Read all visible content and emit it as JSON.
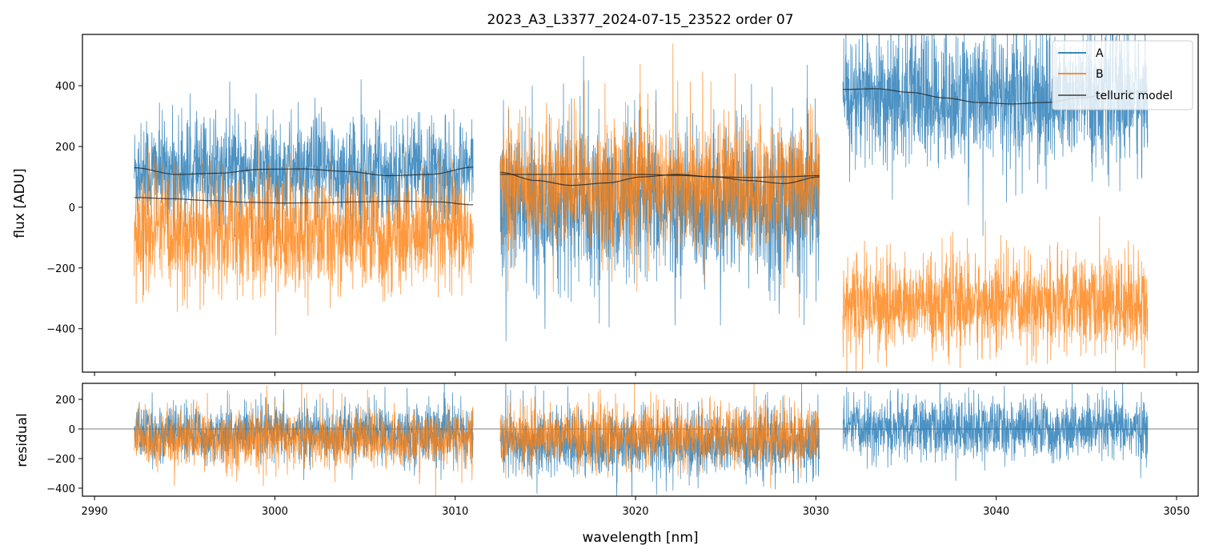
{
  "chart_data": {
    "type": "line",
    "title": "2023_A3_L3377_2024-07-15_23522  order 07",
    "xlabel": "wavelength [nm]",
    "xlim": [
      2989.33,
      3051.2
    ],
    "xticks": [
      "2990",
      "3000",
      "3010",
      "3020",
      "3030",
      "3040",
      "3050"
    ],
    "xtick_values": [
      2990,
      3000,
      3010,
      3020,
      3030,
      3040,
      3050
    ],
    "legend": {
      "placement": "top-right",
      "entries": [
        "A",
        "B",
        "telluric model"
      ]
    },
    "colors": {
      "A": "#1f77b4",
      "B": "#ff7f0e",
      "model": "#333333"
    },
    "panels": [
      {
        "name": "flux",
        "ylabel": "flux [ADU]",
        "ylim": [
          -543,
          569
        ],
        "yticks": [
          "400",
          "200",
          "0",
          "−200",
          "−400"
        ],
        "ytick_values": [
          400,
          200,
          0,
          -200,
          -400
        ],
        "segments": [
          {
            "x": [
              2992.2,
              3011.0
            ],
            "A": {
              "mean": 120,
              "noise": 85
            },
            "B": {
              "mean": -90,
              "noise": 95
            },
            "model_A": [
              130,
              108,
              112,
              125,
              126,
              118,
              104,
              108,
              132
            ],
            "model_B": [
              32,
              28,
              22,
              16,
              14,
              15,
              18,
              20,
              18,
              8
            ]
          },
          {
            "x": [
              3012.5,
              3030.2
            ],
            "A": {
              "mean": 10,
              "noise": 120
            },
            "B": {
              "mean": 70,
              "noise": 105
            },
            "model_A": [
              108,
              108,
              109,
              110,
              108,
              105,
              100,
              98,
              100,
              104
            ],
            "model_B": [
              115,
              88,
              72,
              80,
              100,
              108,
              100,
              88,
              78,
              100
            ]
          },
          {
            "x": [
              3031.5,
              3048.4
            ],
            "A": {
              "mean": 360,
              "noise": 110
            },
            "B": {
              "mean": -320,
              "noise": 75
            },
            "model_A": [
              388,
              390,
              378,
              360,
              345,
              340,
              345,
              360,
              375,
              382
            ]
          }
        ]
      },
      {
        "name": "residual",
        "ylabel": "residual",
        "ylim": [
          -454,
          308
        ],
        "yticks": [
          "200",
          "0",
          "−200",
          "−400"
        ],
        "ytick_values": [
          200,
          0,
          -200,
          -400
        ],
        "zero_line": 0,
        "segments": [
          {
            "x": [
              2992.2,
              3011.0
            ],
            "A": {
              "mean": -30,
              "noise": 95
            },
            "B": {
              "mean": -70,
              "noise": 95
            }
          },
          {
            "x": [
              3012.5,
              3030.2
            ],
            "A": {
              "mean": -100,
              "noise": 110
            },
            "B": {
              "mean": -50,
              "noise": 100
            }
          },
          {
            "x": [
              3031.5,
              3048.4
            ],
            "A": {
              "mean": 0,
              "noise": 100
            }
          }
        ]
      }
    ]
  }
}
